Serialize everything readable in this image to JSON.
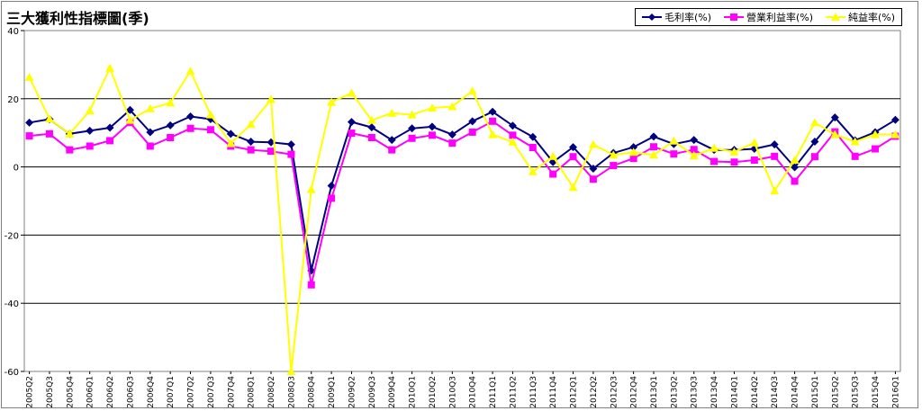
{
  "title": "三大獲利性指標圖(季)",
  "chart_data": {
    "type": "line",
    "title": "三大獲利性指標圖(季)",
    "xlabel": "",
    "ylabel": "",
    "ylim": [
      -60,
      40
    ],
    "yticks": [
      40,
      20,
      0,
      -20,
      -40,
      -60
    ],
    "grid": true,
    "legend": "top-right",
    "categories": [
      "2005Q2",
      "2005Q3",
      "2005Q4",
      "2006Q1",
      "2006Q2",
      "2006Q3",
      "2006Q4",
      "2007Q1",
      "2007Q2",
      "2007Q3",
      "2007Q4",
      "2008Q1",
      "2008Q2",
      "2008Q3",
      "2008Q4",
      "2009Q1",
      "2009Q2",
      "2009Q3",
      "2009Q4",
      "2010Q1",
      "2010Q2",
      "2010Q3",
      "2010Q4",
      "2011Q1",
      "2011Q2",
      "2011Q3",
      "2011Q4",
      "2012Q1",
      "2012Q2",
      "2012Q3",
      "2012Q4",
      "2013Q1",
      "2013Q2",
      "2013Q3",
      "2013Q4",
      "2014Q1",
      "2014Q2",
      "2014Q3",
      "2014Q4",
      "2015Q1",
      "2015Q2",
      "2015Q3",
      "2015Q4",
      "2016Q1"
    ],
    "series": [
      {
        "name": "毛利率(%)",
        "color": "#000080",
        "marker": "diamond",
        "values": [
          13,
          14,
          9.7,
          10.6,
          11.5,
          16.7,
          10.2,
          12.2,
          14.8,
          14,
          9.7,
          7.4,
          7.2,
          6.6,
          -30.4,
          -5.5,
          13.2,
          11.6,
          7.9,
          11.3,
          11.8,
          9.5,
          13.4,
          16.2,
          12.1,
          8.8,
          1.4,
          5.8,
          -0.5,
          4.1,
          5.8,
          8.9,
          6.7,
          7.9,
          5,
          5,
          5.3,
          6.6,
          -0.1,
          7.4,
          14.5,
          7.8,
          10.2,
          13.8
        ]
      },
      {
        "name": "營業利益率(%)",
        "color": "#ff00ff",
        "marker": "square",
        "values": [
          9.1,
          9.7,
          5,
          6.1,
          7.7,
          13,
          6.1,
          8.6,
          11.3,
          10.9,
          6.1,
          5,
          4.6,
          3.7,
          -34.6,
          -9.2,
          9.9,
          8.6,
          5,
          8.4,
          9.3,
          7,
          10.2,
          13.4,
          9.3,
          5.7,
          -2.1,
          3,
          -3.6,
          0.4,
          2.5,
          5.9,
          3.8,
          5.1,
          1.6,
          1.4,
          2,
          3.1,
          -4.2,
          3,
          10.3,
          3.1,
          5.3,
          9
        ]
      },
      {
        "name": "純益率(%)",
        "color": "#ffff00",
        "marker": "triangle",
        "values": [
          26.3,
          14.1,
          9.7,
          16.5,
          29,
          13.7,
          17.1,
          18.8,
          28.1,
          15.3,
          6.9,
          12.5,
          19.8,
          -60,
          -6.6,
          19,
          21.7,
          13.7,
          15.8,
          15.3,
          17.3,
          17.7,
          22.3,
          9.5,
          7.3,
          -1.4,
          3.1,
          -6,
          6.6,
          3.5,
          4.3,
          3.5,
          7.6,
          3.3,
          5.5,
          4.4,
          7.1,
          -7,
          2,
          13,
          9.5,
          7.4,
          9.5,
          9.5
        ]
      }
    ]
  }
}
